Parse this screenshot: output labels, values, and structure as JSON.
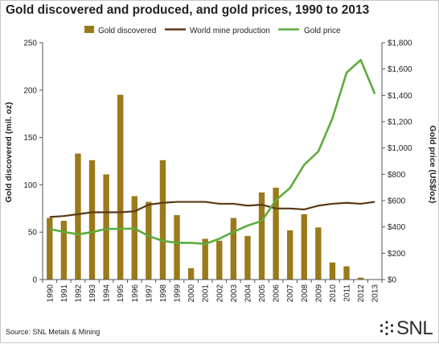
{
  "title": "Gold discovered and produced, and gold prices, 1990 to 2013",
  "source": "Source: SNL Metals & Mining",
  "logo_text": "SNL",
  "colors": {
    "discovered": "#9a7a1a",
    "production": "#5a3a16",
    "price": "#5cad3c"
  },
  "chart_data": {
    "type": "bar",
    "categories": [
      "1990",
      "1991",
      "1992",
      "1993",
      "1994",
      "1995",
      "1996",
      "1997",
      "1998",
      "1999",
      "2000",
      "2001",
      "2002",
      "2003",
      "2004",
      "2005",
      "2006",
      "2007",
      "2008",
      "2009",
      "2010",
      "2011",
      "2012",
      "2013"
    ],
    "series": [
      {
        "name": "Gold discovered",
        "type": "bar",
        "axis": "left",
        "values": [
          65,
          62,
          133,
          126,
          111,
          195,
          88,
          82,
          126,
          68,
          12,
          43,
          41,
          65,
          46,
          92,
          97,
          52,
          69,
          55,
          18,
          14,
          2,
          0
        ]
      },
      {
        "name": "World mine production",
        "type": "line",
        "axis": "left",
        "values": [
          66,
          67,
          69,
          71,
          71,
          71,
          72,
          79,
          81,
          82,
          82,
          82,
          80,
          80,
          78,
          79,
          75,
          75,
          74,
          78,
          80,
          81,
          80,
          82
        ]
      },
      {
        "name": "Gold price",
        "type": "line",
        "axis": "right",
        "values": [
          384,
          362,
          344,
          360,
          385,
          385,
          388,
          331,
          294,
          279,
          279,
          271,
          310,
          363,
          410,
          445,
          604,
          696,
          872,
          973,
          1225,
          1572,
          1669,
          1411
        ]
      }
    ],
    "ylabel": "Gold discovered (mil. oz)",
    "y2label": "Gold price (US$/oz)",
    "ylim": [
      0,
      250
    ],
    "y2lim": [
      0,
      1800
    ],
    "yticks": [
      "0",
      "50",
      "100",
      "150",
      "200",
      "250"
    ],
    "y2ticks": [
      "$0",
      "$200",
      "$400",
      "$600",
      "$800",
      "$1,000",
      "$1,200",
      "$1,400",
      "$1,600",
      "$1,800"
    ],
    "grid": false,
    "legend": "top"
  }
}
